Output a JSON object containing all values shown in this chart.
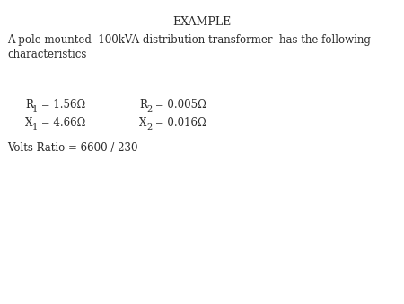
{
  "title": "EXAMPLE",
  "background_color": "#ffffff",
  "text_color": "#2a2a2a",
  "title_fontsize": 9,
  "body_fontsize": 8.5,
  "sub_fontsize": 7,
  "description_line1": "A pole mounted  100kVA distribution transformer  has the following",
  "description_line2": "characteristics",
  "r1_val": " = 1.56Ω",
  "r2_val": " = 0.005Ω",
  "x1_val": " = 4.66Ω",
  "x2_val": " = 0.016Ω",
  "volts_ratio": "Volts Ratio = 6600 / 230",
  "fig_width": 4.5,
  "fig_height": 3.38,
  "dpi": 100
}
